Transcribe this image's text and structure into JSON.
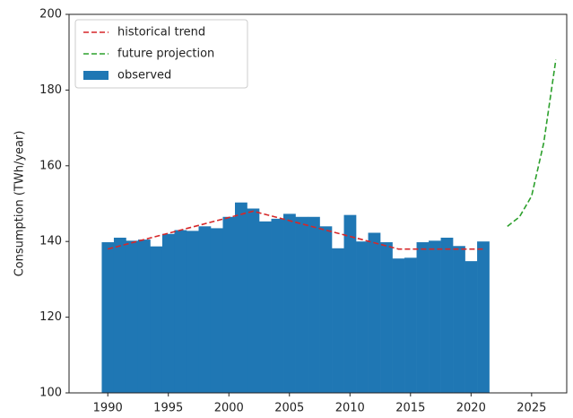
{
  "chart_data": {
    "type": "bar",
    "ylabel": "Consumption (TWh/year)",
    "xlim": [
      1986.8,
      2027.9
    ],
    "ylim": [
      100,
      200
    ],
    "xticks": [
      1990,
      1995,
      2000,
      2005,
      2010,
      2015,
      2020,
      2025
    ],
    "yticks": [
      100,
      120,
      140,
      160,
      180,
      200
    ],
    "legend": "upper left",
    "series": [
      {
        "name": "observed",
        "type": "bar",
        "color": "#1f77b4",
        "x": [
          1990,
          1991,
          1992,
          1993,
          1994,
          1995,
          1996,
          1997,
          1998,
          1999,
          2000,
          2001,
          2002,
          2003,
          2004,
          2005,
          2006,
          2007,
          2008,
          2009,
          2010,
          2011,
          2012,
          2013,
          2014,
          2015,
          2016,
          2017,
          2018,
          2019,
          2020,
          2021
        ],
        "values": [
          139.8,
          141,
          140.2,
          140.5,
          138.7,
          142,
          143,
          142.8,
          144,
          143.5,
          146.5,
          150.3,
          148.7,
          145.3,
          146,
          147.3,
          146.5,
          146.5,
          144,
          138.2,
          147,
          140,
          142.3,
          139.8,
          135.5,
          135.7,
          139.8,
          140.2,
          141,
          138.8,
          134.8,
          140
        ]
      },
      {
        "name": "historical trend",
        "type": "line",
        "color": "#d62728",
        "x": [
          1990,
          2002,
          2014,
          2021
        ],
        "values": [
          138,
          148,
          138,
          138
        ]
      },
      {
        "name": "future projection",
        "type": "line",
        "color": "#2ca02c",
        "x": [
          2023,
          2024,
          2025,
          2026,
          2027
        ],
        "values": [
          144,
          146.5,
          152,
          166,
          188
        ]
      }
    ]
  }
}
